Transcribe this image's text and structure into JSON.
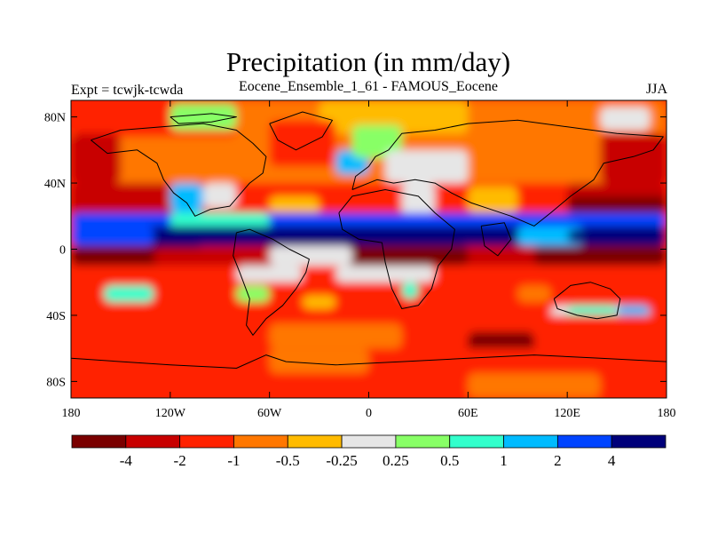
{
  "title": "Precipitation (in mm/day)",
  "subtitle": "Eocene_Ensemble_1_61 - FAMOUS_Eocene",
  "left_label": "Expt = tcwjk-tcwda",
  "season": "JJA",
  "lat_ticks": [
    "80N",
    "40N",
    "0",
    "40S",
    "80S"
  ],
  "lon_ticks": [
    "180",
    "120W",
    "60W",
    "0",
    "60E",
    "120E",
    "180"
  ],
  "chart_data": {
    "type": "heatmap",
    "title": "Precipitation (in mm/day)",
    "subtitle": "Eocene_Ensemble_1_61 - FAMOUS_Eocene",
    "xlim": [
      -180,
      180
    ],
    "ylim": [
      -90,
      90
    ],
    "x_ticks": [
      -180,
      -120,
      -60,
      0,
      60,
      120,
      180
    ],
    "y_ticks": [
      80,
      40,
      0,
      -40,
      -80
    ],
    "colorbar": {
      "colors": [
        "#7a0000",
        "#c80000",
        "#ff2200",
        "#ff7700",
        "#ffbb00",
        "#e6e6e6",
        "#88ff66",
        "#33ffcc",
        "#00bbff",
        "#0044ff",
        "#00007a"
      ],
      "labels": [
        "-4",
        "-2",
        "-1",
        "-0.5",
        "-0.25",
        "0.25",
        "0.5",
        "1",
        "2",
        "4"
      ]
    },
    "regions": [
      {
        "lat": [
          40,
          90
        ],
        "lon": [
          -180,
          180
        ],
        "level": 3
      },
      {
        "lat": [
          68,
          90
        ],
        "lon": [
          -180,
          -80
        ],
        "level": 2
      },
      {
        "lat": [
          70,
          90
        ],
        "lon": [
          -30,
          60
        ],
        "level": 4
      },
      {
        "lat": [
          72,
          88
        ],
        "lon": [
          -120,
          -80
        ],
        "level": 6
      },
      {
        "lat": [
          72,
          86
        ],
        "lon": [
          140,
          170
        ],
        "level": 5
      },
      {
        "lat": [
          40,
          70
        ],
        "lon": [
          -180,
          -150
        ],
        "level": 1
      },
      {
        "lat": [
          40,
          70
        ],
        "lon": [
          140,
          180
        ],
        "level": 1
      },
      {
        "lat": [
          50,
          78
        ],
        "lon": [
          -60,
          -20
        ],
        "level": 2
      },
      {
        "lat": [
          40,
          68
        ],
        "lon": [
          80,
          140
        ],
        "level": 3
      },
      {
        "lat": [
          45,
          60
        ],
        "lon": [
          -20,
          0
        ],
        "level": 8
      },
      {
        "lat": [
          55,
          75
        ],
        "lon": [
          -10,
          20
        ],
        "level": 6
      },
      {
        "lat": [
          40,
          60
        ],
        "lon": [
          10,
          60
        ],
        "level": 5
      },
      {
        "lat": [
          20,
          40
        ],
        "lon": [
          -180,
          180
        ],
        "level": 2
      },
      {
        "lat": [
          20,
          40
        ],
        "lon": [
          -180,
          -120
        ],
        "level": 1
      },
      {
        "lat": [
          20,
          40
        ],
        "lon": [
          120,
          180
        ],
        "level": 1
      },
      {
        "lat": [
          22,
          40
        ],
        "lon": [
          -120,
          -100
        ],
        "level": 8
      },
      {
        "lat": [
          25,
          40
        ],
        "lon": [
          -100,
          -80
        ],
        "level": 5
      },
      {
        "lat": [
          20,
          40
        ],
        "lon": [
          20,
          40
        ],
        "level": 5
      },
      {
        "lat": [
          22,
          38
        ],
        "lon": [
          60,
          90
        ],
        "level": 4
      },
      {
        "lat": [
          20,
          32
        ],
        "lon": [
          -60,
          -30
        ],
        "level": 4
      },
      {
        "lat": [
          12,
          22
        ],
        "lon": [
          -180,
          180
        ],
        "level": 9
      },
      {
        "lat": [
          12,
          22
        ],
        "lon": [
          -120,
          -60
        ],
        "level": 7
      },
      {
        "lat": [
          2,
          14
        ],
        "lon": [
          -180,
          180
        ],
        "level": 10
      },
      {
        "lat": [
          2,
          14
        ],
        "lon": [
          -180,
          -130
        ],
        "level": 9
      },
      {
        "lat": [
          2,
          14
        ],
        "lon": [
          90,
          130
        ],
        "level": 8
      },
      {
        "lat": [
          4,
          12
        ],
        "lon": [
          120,
          180
        ],
        "level": 10
      },
      {
        "lat": [
          22,
          32
        ],
        "lon": [
          120,
          180
        ],
        "level": 0
      },
      {
        "lat": [
          -10,
          2
        ],
        "lon": [
          -180,
          180
        ],
        "level": 1
      },
      {
        "lat": [
          -10,
          2
        ],
        "lon": [
          -180,
          -100
        ],
        "level": 0
      },
      {
        "lat": [
          -10,
          2
        ],
        "lon": [
          -20,
          60
        ],
        "level": 0
      },
      {
        "lat": [
          -10,
          2
        ],
        "lon": [
          100,
          180
        ],
        "level": 0
      },
      {
        "lat": [
          -20,
          -10
        ],
        "lon": [
          -180,
          180
        ],
        "level": 2
      },
      {
        "lat": [
          -20,
          -10
        ],
        "lon": [
          -80,
          -40
        ],
        "level": 5
      },
      {
        "lat": [
          -20,
          -10
        ],
        "lon": [
          -20,
          40
        ],
        "level": 5
      },
      {
        "lat": [
          -10,
          2
        ],
        "lon": [
          -60,
          -10
        ],
        "level": 5
      },
      {
        "lat": [
          -10,
          0
        ],
        "lon": [
          -130,
          -80
        ],
        "level": 1
      },
      {
        "lat": [
          -40,
          -20
        ],
        "lon": [
          -180,
          180
        ],
        "level": 2
      },
      {
        "lat": [
          -32,
          -22
        ],
        "lon": [
          -160,
          -130
        ],
        "level": 7
      },
      {
        "lat": [
          -32,
          -22
        ],
        "lon": [
          -80,
          -60
        ],
        "level": 6
      },
      {
        "lat": [
          -30,
          -20
        ],
        "lon": [
          20,
          30
        ],
        "level": 7
      },
      {
        "lat": [
          -36,
          -28
        ],
        "lon": [
          -40,
          -20
        ],
        "level": 4
      },
      {
        "lat": [
          -32,
          -22
        ],
        "lon": [
          90,
          110
        ],
        "level": 3
      },
      {
        "lat": [
          -45,
          -34
        ],
        "lon": [
          110,
          170
        ],
        "level": 5
      },
      {
        "lat": [
          -42,
          -34
        ],
        "lon": [
          120,
          150
        ],
        "level": 7
      },
      {
        "lat": [
          -40,
          -34
        ],
        "lon": [
          150,
          170
        ],
        "level": 8
      },
      {
        "lat": [
          -60,
          -40
        ],
        "lon": [
          -180,
          180
        ],
        "level": 2
      },
      {
        "lat": [
          -60,
          -45
        ],
        "lon": [
          -60,
          20
        ],
        "level": 3
      },
      {
        "lat": [
          -65,
          -50
        ],
        "lon": [
          60,
          100
        ],
        "level": 0
      },
      {
        "lat": [
          -90,
          -60
        ],
        "lon": [
          -180,
          180
        ],
        "level": 2
      },
      {
        "lat": [
          -75,
          -60
        ],
        "lon": [
          -60,
          0
        ],
        "level": 3
      },
      {
        "lat": [
          -90,
          -75
        ],
        "lon": [
          60,
          140
        ],
        "level": 3
      }
    ]
  }
}
